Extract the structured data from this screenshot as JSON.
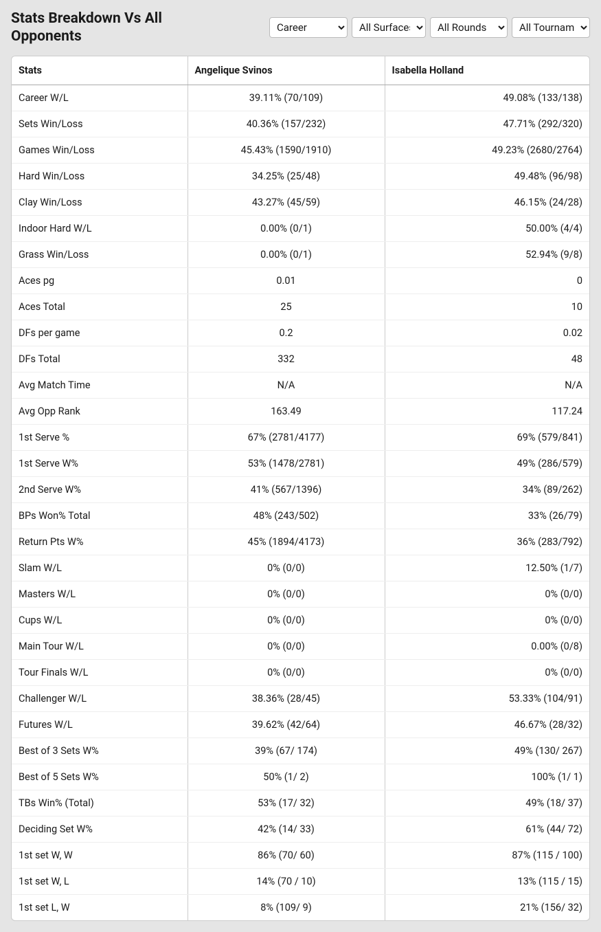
{
  "title": "Stats Breakdown Vs All Opponents",
  "filters": {
    "career": {
      "selected": "Career",
      "options": [
        "Career"
      ]
    },
    "surface": {
      "selected": "All Surfaces",
      "options": [
        "All Surfaces"
      ]
    },
    "rounds": {
      "selected": "All Rounds",
      "options": [
        "All Rounds"
      ]
    },
    "tournaments": {
      "selected": "All Tournaments",
      "options": [
        "All Tournaments"
      ]
    }
  },
  "table": {
    "columns": {
      "stats": "Stats",
      "player1": "Angelique Svinos",
      "player2": "Isabella Holland"
    },
    "rows": [
      {
        "stat": "Career W/L",
        "p1": "39.11% (70/109)",
        "p2": "49.08% (133/138)"
      },
      {
        "stat": "Sets Win/Loss",
        "p1": "40.36% (157/232)",
        "p2": "47.71% (292/320)"
      },
      {
        "stat": "Games Win/Loss",
        "p1": "45.43% (1590/1910)",
        "p2": "49.23% (2680/2764)"
      },
      {
        "stat": "Hard Win/Loss",
        "p1": "34.25% (25/48)",
        "p2": "49.48% (96/98)"
      },
      {
        "stat": "Clay Win/Loss",
        "p1": "43.27% (45/59)",
        "p2": "46.15% (24/28)"
      },
      {
        "stat": "Indoor Hard W/L",
        "p1": "0.00% (0/1)",
        "p2": "50.00% (4/4)"
      },
      {
        "stat": "Grass Win/Loss",
        "p1": "0.00% (0/1)",
        "p2": "52.94% (9/8)"
      },
      {
        "stat": "Aces pg",
        "p1": "0.01",
        "p2": "0"
      },
      {
        "stat": "Aces Total",
        "p1": "25",
        "p2": "10"
      },
      {
        "stat": "DFs per game",
        "p1": "0.2",
        "p2": "0.02"
      },
      {
        "stat": "DFs Total",
        "p1": "332",
        "p2": "48"
      },
      {
        "stat": "Avg Match Time",
        "p1": "N/A",
        "p2": "N/A"
      },
      {
        "stat": "Avg Opp Rank",
        "p1": "163.49",
        "p2": "117.24"
      },
      {
        "stat": "1st Serve %",
        "p1": "67% (2781/4177)",
        "p2": "69% (579/841)"
      },
      {
        "stat": "1st Serve W%",
        "p1": "53% (1478/2781)",
        "p2": "49% (286/579)"
      },
      {
        "stat": "2nd Serve W%",
        "p1": "41% (567/1396)",
        "p2": "34% (89/262)"
      },
      {
        "stat": "BPs Won% Total",
        "p1": "48% (243/502)",
        "p2": "33% (26/79)"
      },
      {
        "stat": "Return Pts W%",
        "p1": "45% (1894/4173)",
        "p2": "36% (283/792)"
      },
      {
        "stat": "Slam W/L",
        "p1": "0% (0/0)",
        "p2": "12.50% (1/7)"
      },
      {
        "stat": "Masters W/L",
        "p1": "0% (0/0)",
        "p2": "0% (0/0)"
      },
      {
        "stat": "Cups W/L",
        "p1": "0% (0/0)",
        "p2": "0% (0/0)"
      },
      {
        "stat": "Main Tour W/L",
        "p1": "0% (0/0)",
        "p2": "0.00% (0/8)"
      },
      {
        "stat": "Tour Finals W/L",
        "p1": "0% (0/0)",
        "p2": "0% (0/0)"
      },
      {
        "stat": "Challenger W/L",
        "p1": "38.36% (28/45)",
        "p2": "53.33% (104/91)"
      },
      {
        "stat": "Futures W/L",
        "p1": "39.62% (42/64)",
        "p2": "46.67% (28/32)"
      },
      {
        "stat": "Best of 3 Sets W%",
        "p1": "39% (67/ 174)",
        "p2": "49% (130/ 267)"
      },
      {
        "stat": "Best of 5 Sets W%",
        "p1": "50% (1/ 2)",
        "p2": "100% (1/ 1)"
      },
      {
        "stat": "TBs Win% (Total)",
        "p1": "53% (17/ 32)",
        "p2": "49% (18/ 37)"
      },
      {
        "stat": "Deciding Set W%",
        "p1": "42% (14/ 33)",
        "p2": "61% (44/ 72)"
      },
      {
        "stat": "1st set W, W",
        "p1": "86% (70/ 60)",
        "p2": "87% (115 / 100)"
      },
      {
        "stat": "1st set W, L",
        "p1": "14% (70 / 10)",
        "p2": "13% (115 / 15)"
      },
      {
        "stat": "1st set L, W",
        "p1": "8% (109/ 9)",
        "p2": "21% (156/ 32)"
      }
    ]
  }
}
